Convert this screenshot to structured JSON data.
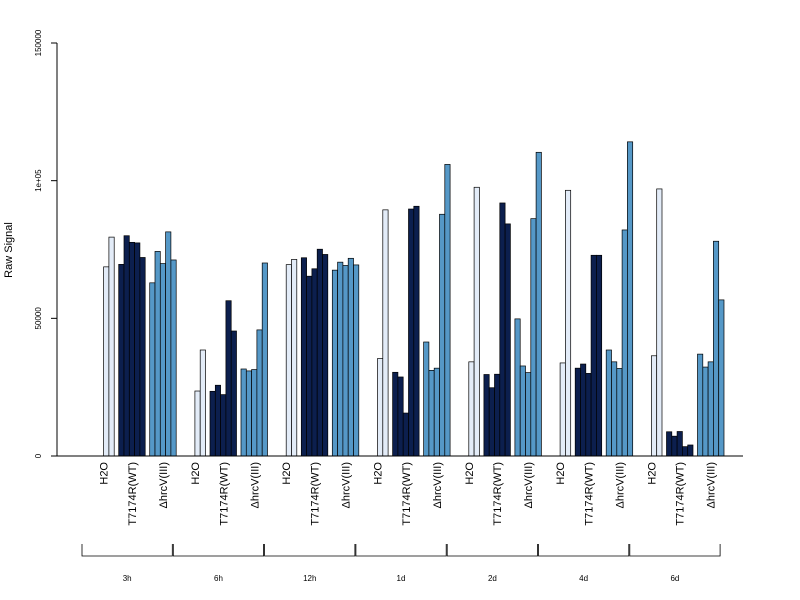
{
  "chart_data": {
    "type": "bar",
    "ylabel": "Raw Signal",
    "ylim": [
      0,
      150000
    ],
    "yticks": [
      {
        "value": 0,
        "label": "0"
      },
      {
        "value": 50000,
        "label": "50000"
      },
      {
        "value": 100000,
        "label": "1e+05"
      },
      {
        "value": 150000,
        "label": "150000"
      }
    ],
    "treatment_labels": [
      "H2O",
      "T7174R(WT)",
      "ΔhrcV(III)"
    ],
    "timepoints": [
      "3h",
      "6h",
      "12h",
      "1d",
      "2d",
      "4d",
      "6d"
    ],
    "colors": {
      "H2O": "#e3ecf8",
      "T7174R(WT)": "#0c1f4e",
      "ΔhrcV(III)": "#5598c7"
    },
    "groups": [
      {
        "timepoint": "3h",
        "H2O": [
          0,
          0,
          68700,
          79500
        ],
        "T7174R(WT)": [
          69600,
          80000,
          77600,
          77400,
          72100
        ],
        "ΔhrcV(III)": [
          62900,
          74300,
          69900,
          81400,
          71200
        ]
      },
      {
        "timepoint": "6h",
        "H2O": [
          0,
          0,
          23600,
          38500
        ],
        "T7174R(WT)": [
          23500,
          25700,
          22300,
          56400,
          45400
        ],
        "ΔhrcV(III)": [
          31600,
          30900,
          31400,
          45800,
          70100
        ]
      },
      {
        "timepoint": "12h",
        "H2O": [
          0,
          0,
          69500,
          71400
        ],
        "T7174R(WT)": [
          72000,
          65300,
          68000,
          75100,
          73200
        ],
        "ΔhrcV(III)": [
          67500,
          70400,
          69200,
          71800,
          69400
        ]
      },
      {
        "timepoint": "1d",
        "H2O": [
          0,
          0,
          35400,
          89400
        ],
        "T7174R(WT)": [
          30400,
          28700,
          15600,
          89700,
          90700
        ],
        "ΔhrcV(III)": [
          41400,
          31100,
          31900,
          87800,
          105900
        ]
      },
      {
        "timepoint": "2d",
        "H2O": [
          0,
          0,
          34200,
          97600
        ],
        "T7174R(WT)": [
          29600,
          24800,
          29700,
          91900,
          84300
        ],
        "ΔhrcV(III)": [
          49800,
          32700,
          30300,
          86200,
          110300
        ]
      },
      {
        "timepoint": "4d",
        "H2O": [
          0,
          0,
          33800,
          96500
        ],
        "T7174R(WT)": [
          31900,
          33400,
          30000,
          72900,
          72900
        ],
        "ΔhrcV(III)": [
          38500,
          34200,
          31800,
          82100,
          114100
        ]
      },
      {
        "timepoint": "6d",
        "H2O": [
          0,
          0,
          36400,
          97000
        ],
        "T7174R(WT)": [
          8800,
          7200,
          8900,
          3400,
          4000
        ],
        "ΔhrcV(III)": [
          37000,
          32300,
          34200,
          78000,
          56700
        ]
      }
    ]
  }
}
